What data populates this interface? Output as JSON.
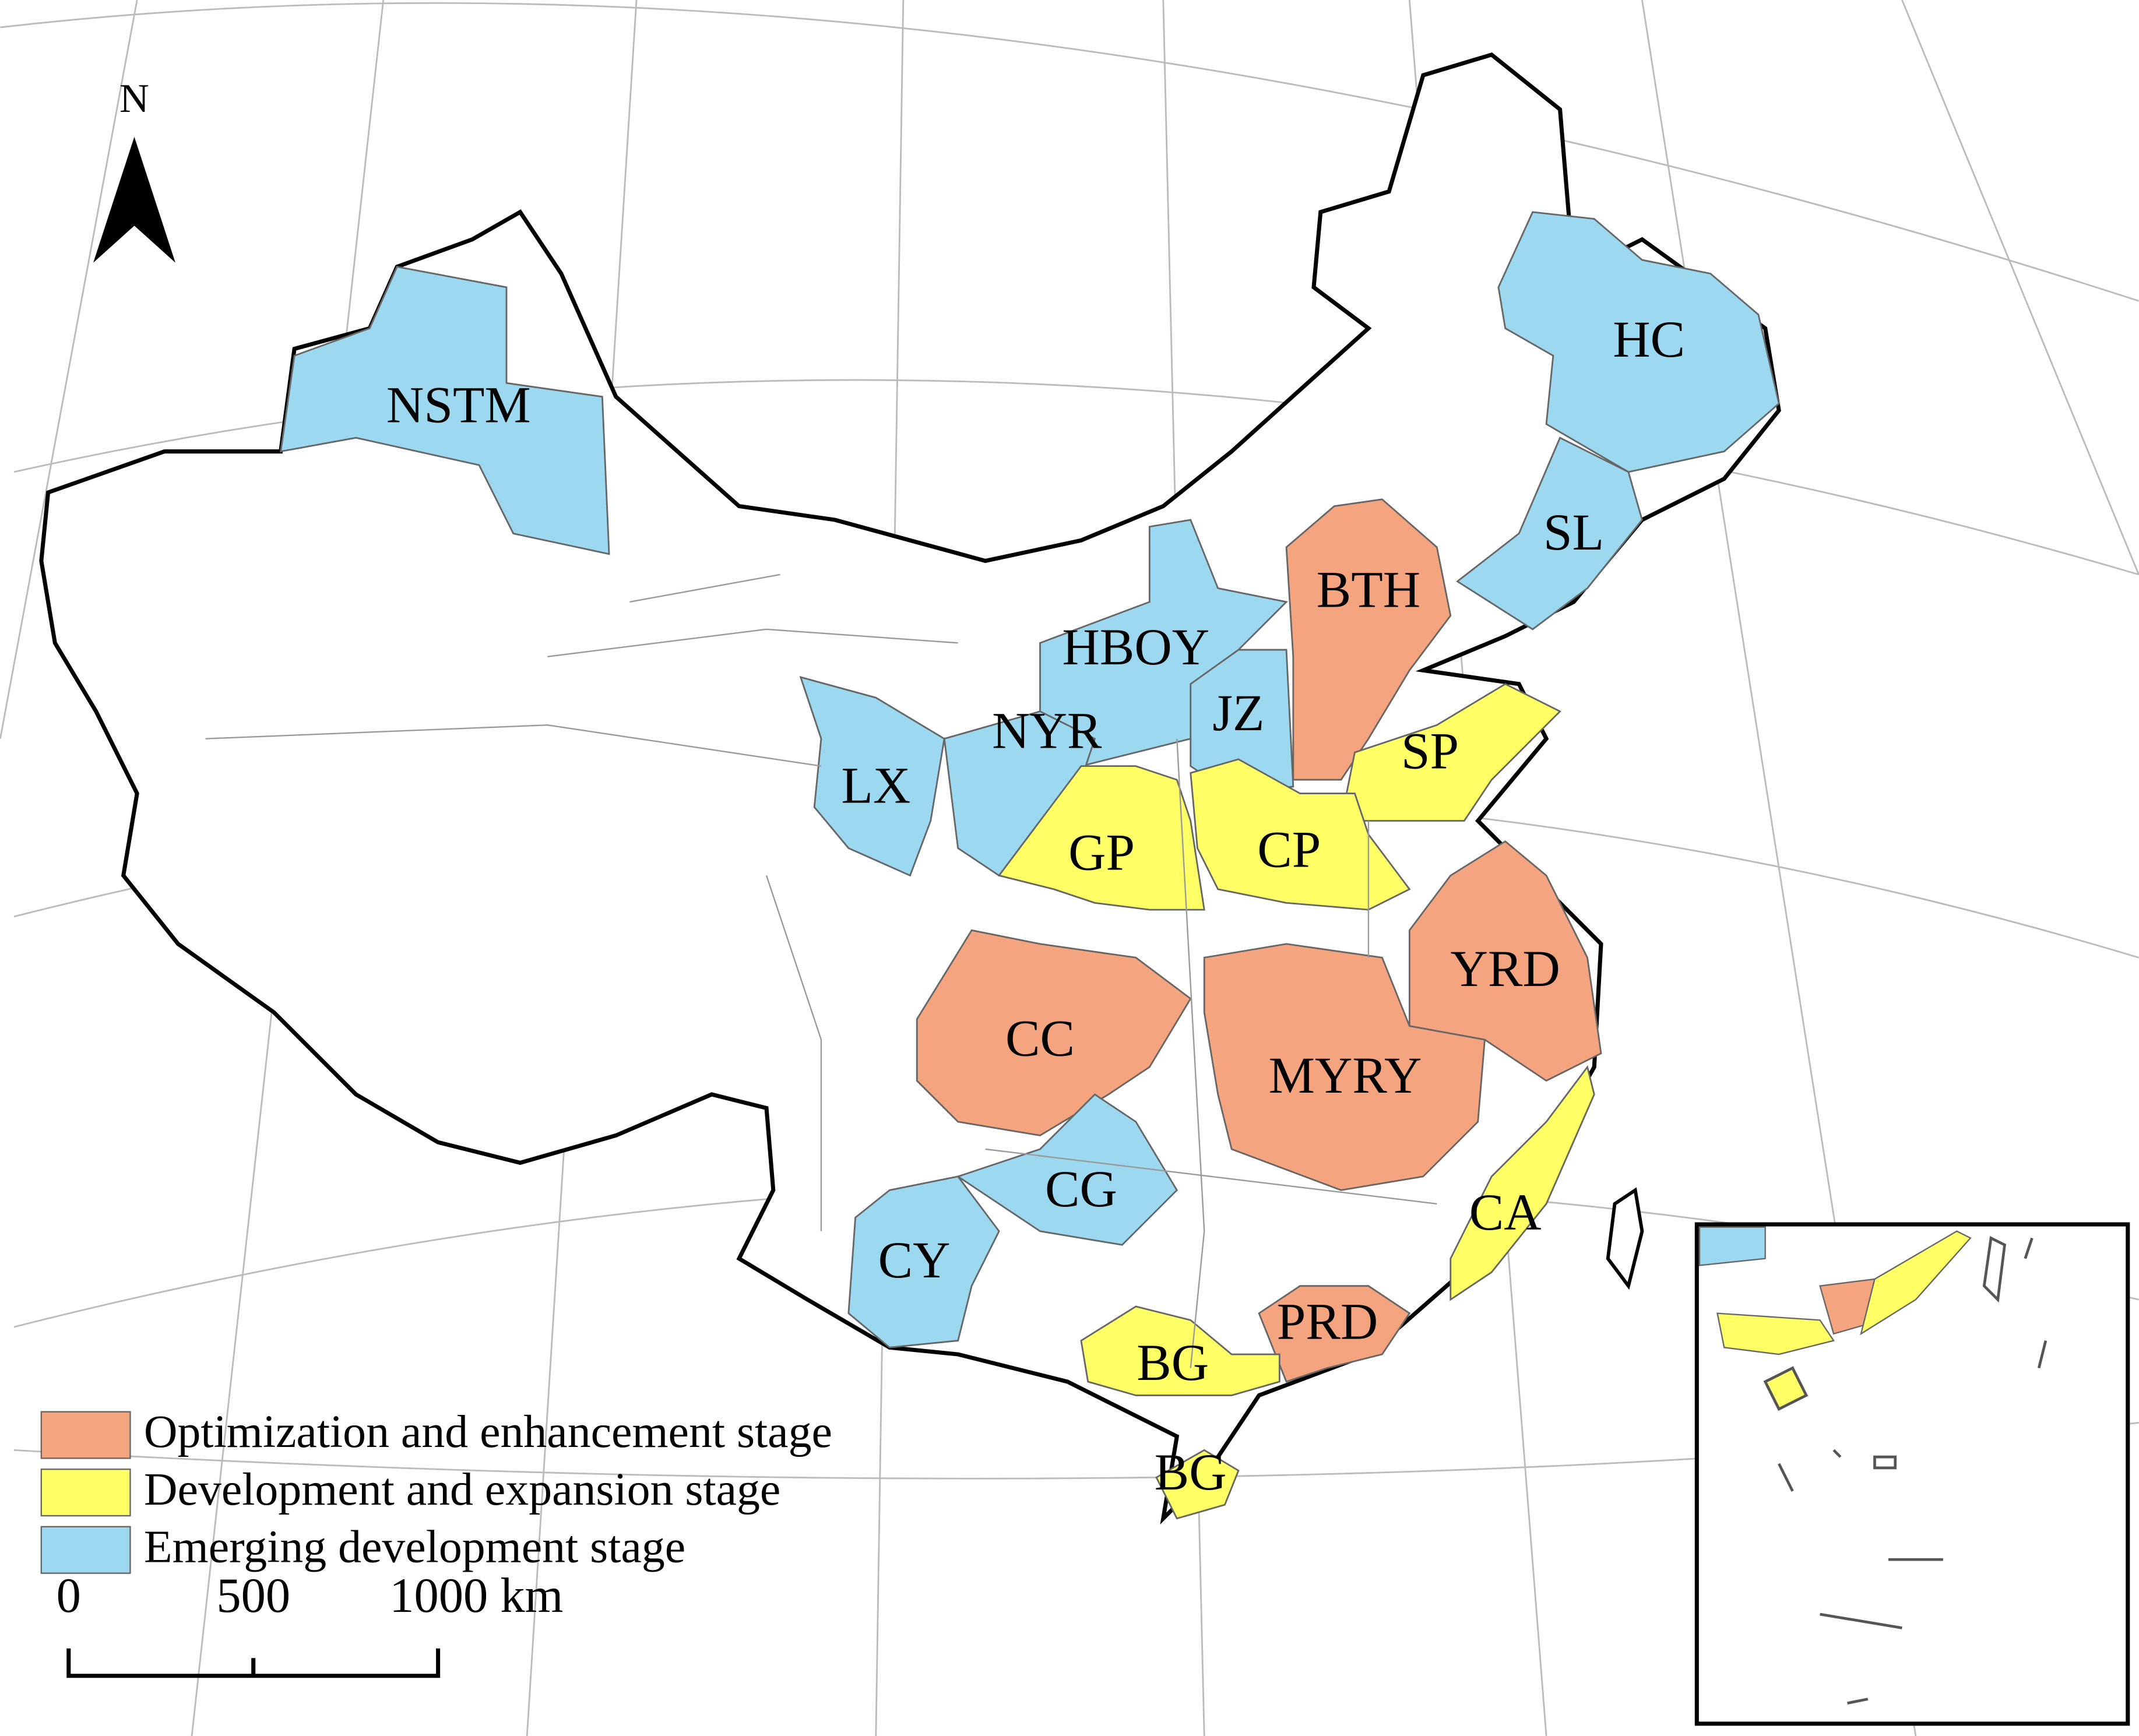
{
  "north_label": "N",
  "regions": [
    {
      "label": "NSTM",
      "color": "#9cd9f0"
    },
    {
      "label": "HC",
      "color": "#9cd9f0"
    },
    {
      "label": "SL",
      "color": "#9cd9f0"
    },
    {
      "label": "BTH",
      "color": "#f4a47e"
    },
    {
      "label": "HBOY",
      "color": "#9cd9f0"
    },
    {
      "label": "JZ",
      "color": "#9cd9f0"
    },
    {
      "label": "NYR",
      "color": "#9cd9f0"
    },
    {
      "label": "LX",
      "color": "#9cd9f0"
    },
    {
      "label": "SP",
      "color": "#ffff66"
    },
    {
      "label": "GP",
      "color": "#ffff66"
    },
    {
      "label": "CP",
      "color": "#ffff66"
    },
    {
      "label": "YRD",
      "color": "#f4a47e"
    },
    {
      "label": "CC",
      "color": "#f4a47e"
    },
    {
      "label": "MYRY",
      "color": "#f4a47e"
    },
    {
      "label": "CG",
      "color": "#9cd9f0"
    },
    {
      "label": "CY",
      "color": "#9cd9f0"
    },
    {
      "label": "CA",
      "color": "#ffff66"
    },
    {
      "label": "PRD",
      "color": "#f4a47e"
    },
    {
      "label": "BG",
      "color": "#ffff66"
    },
    {
      "label": "BG",
      "color": "#ffff66"
    }
  ],
  "legend": [
    {
      "label": "Optimization and enhancement stage",
      "color": "#f4a47e"
    },
    {
      "label": "Development and expansion stage",
      "color": "#ffff66"
    },
    {
      "label": "Emerging development stage",
      "color": "#9cd9f0"
    }
  ],
  "scale_bar": {
    "labels": [
      "0",
      "500",
      "1000 km"
    ]
  }
}
